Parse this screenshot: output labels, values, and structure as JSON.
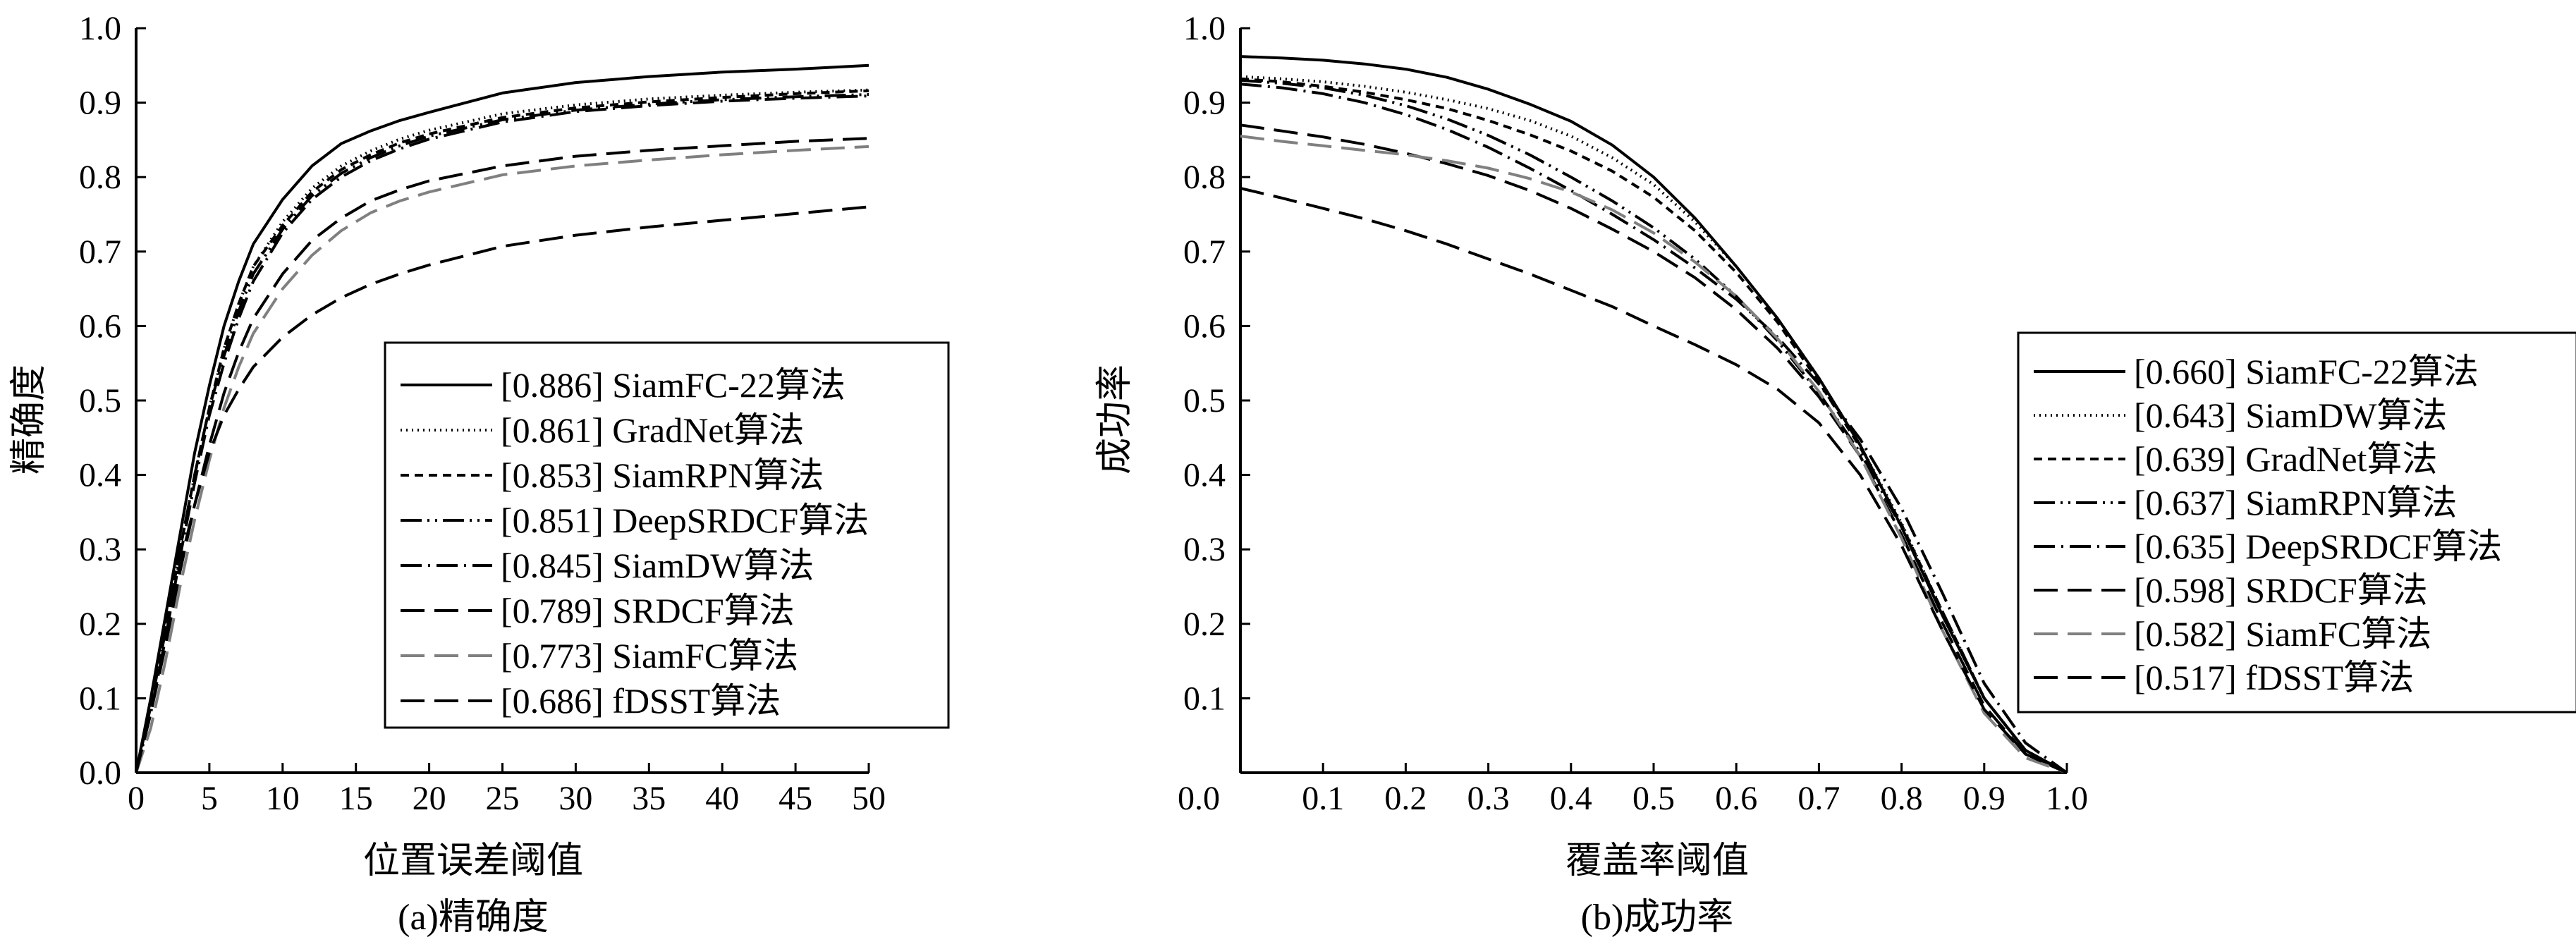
{
  "chart_data": [
    {
      "type": "line",
      "ylabel": "精确度",
      "xlabel": "位置误差阈值",
      "caption": "(a)精确度",
      "xlim": [
        0,
        50
      ],
      "ylim": [
        0.0,
        1.0
      ],
      "xticks": [
        0,
        5,
        10,
        15,
        20,
        25,
        30,
        35,
        40,
        45,
        50
      ],
      "yticks": [
        0.0,
        0.1,
        0.2,
        0.3,
        0.4,
        0.5,
        0.6,
        0.7,
        0.8,
        0.9,
        1.0
      ],
      "xtick_labels": [
        "0",
        "5",
        "10",
        "15",
        "20",
        "25",
        "30",
        "35",
        "40",
        "45",
        "50"
      ],
      "ytick_labels": [
        "0.0",
        "0.1",
        "0.2",
        "0.3",
        "0.4",
        "0.5",
        "0.6",
        "0.7",
        "0.8",
        "0.9",
        "1.0"
      ],
      "grid": false,
      "legend_position": "lower-right",
      "series": [
        {
          "name": "[0.886] SiamFC-22算法",
          "style": "solid",
          "color": "#000000",
          "x": [
            0,
            1,
            2,
            3,
            4,
            5,
            6,
            7,
            8,
            10,
            12,
            14,
            16,
            18,
            20,
            25,
            30,
            35,
            40,
            45,
            50
          ],
          "y": [
            0.0,
            0.1,
            0.21,
            0.32,
            0.43,
            0.52,
            0.6,
            0.66,
            0.71,
            0.77,
            0.815,
            0.845,
            0.862,
            0.876,
            0.887,
            0.913,
            0.927,
            0.935,
            0.941,
            0.945,
            0.95
          ]
        },
        {
          "name": "[0.861] GradNet算法",
          "style": "dotted",
          "color": "#000000",
          "x": [
            0,
            1,
            2,
            3,
            4,
            5,
            6,
            7,
            8,
            10,
            12,
            14,
            16,
            18,
            20,
            25,
            30,
            35,
            40,
            45,
            50
          ],
          "y": [
            0.0,
            0.09,
            0.19,
            0.3,
            0.4,
            0.49,
            0.57,
            0.63,
            0.68,
            0.74,
            0.785,
            0.815,
            0.835,
            0.851,
            0.863,
            0.885,
            0.897,
            0.905,
            0.91,
            0.914,
            0.917
          ]
        },
        {
          "name": "[0.853] SiamRPN算法",
          "style": "dashed-short",
          "color": "#000000",
          "x": [
            0,
            1,
            2,
            3,
            4,
            5,
            6,
            7,
            8,
            10,
            12,
            14,
            16,
            18,
            20,
            25,
            30,
            35,
            40,
            45,
            50
          ],
          "y": [
            0.0,
            0.09,
            0.19,
            0.3,
            0.4,
            0.49,
            0.57,
            0.63,
            0.68,
            0.735,
            0.78,
            0.81,
            0.83,
            0.846,
            0.858,
            0.88,
            0.893,
            0.901,
            0.907,
            0.912,
            0.916
          ]
        },
        {
          "name": "[0.851] DeepSRDCF算法",
          "style": "dash-dot-dot",
          "color": "#000000",
          "x": [
            0,
            1,
            2,
            3,
            4,
            5,
            6,
            7,
            8,
            10,
            12,
            14,
            16,
            18,
            20,
            25,
            30,
            35,
            40,
            45,
            50
          ],
          "y": [
            0.0,
            0.09,
            0.19,
            0.3,
            0.4,
            0.49,
            0.56,
            0.62,
            0.67,
            0.73,
            0.775,
            0.805,
            0.826,
            0.842,
            0.855,
            0.877,
            0.89,
            0.898,
            0.904,
            0.908,
            0.911
          ]
        },
        {
          "name": "[0.845] SiamDW算法",
          "style": "dash-dot",
          "color": "#000000",
          "x": [
            0,
            1,
            2,
            3,
            4,
            5,
            6,
            7,
            8,
            10,
            12,
            14,
            16,
            18,
            20,
            25,
            30,
            35,
            40,
            45,
            50
          ],
          "y": [
            0.0,
            0.08,
            0.18,
            0.29,
            0.39,
            0.48,
            0.55,
            0.61,
            0.66,
            0.725,
            0.77,
            0.8,
            0.822,
            0.838,
            0.851,
            0.874,
            0.888,
            0.896,
            0.902,
            0.906,
            0.909
          ]
        },
        {
          "name": "[0.789] SRDCF算法",
          "style": "dashed-long",
          "color": "#000000",
          "x": [
            0,
            1,
            2,
            3,
            4,
            5,
            6,
            7,
            8,
            10,
            12,
            14,
            16,
            18,
            20,
            25,
            30,
            35,
            40,
            45,
            50
          ],
          "y": [
            0.0,
            0.08,
            0.17,
            0.27,
            0.36,
            0.44,
            0.51,
            0.565,
            0.61,
            0.67,
            0.715,
            0.745,
            0.768,
            0.783,
            0.795,
            0.815,
            0.828,
            0.836,
            0.842,
            0.848,
            0.852
          ]
        },
        {
          "name": "[0.773] SiamFC算法",
          "style": "dashed-long",
          "color": "#808080",
          "x": [
            0,
            1,
            2,
            3,
            4,
            5,
            6,
            7,
            8,
            10,
            12,
            14,
            16,
            18,
            20,
            25,
            30,
            35,
            40,
            45,
            50
          ],
          "y": [
            0.0,
            0.06,
            0.15,
            0.25,
            0.34,
            0.42,
            0.49,
            0.545,
            0.59,
            0.65,
            0.695,
            0.728,
            0.752,
            0.768,
            0.78,
            0.803,
            0.815,
            0.823,
            0.83,
            0.836,
            0.841
          ]
        },
        {
          "name": "[0.686] fDSST算法",
          "style": "dashed-long",
          "color": "#000000",
          "x": [
            0,
            1,
            2,
            3,
            4,
            5,
            6,
            7,
            8,
            10,
            12,
            14,
            16,
            18,
            20,
            25,
            30,
            35,
            40,
            45,
            50
          ],
          "y": [
            0.0,
            0.08,
            0.18,
            0.28,
            0.36,
            0.43,
            0.48,
            0.515,
            0.545,
            0.585,
            0.615,
            0.638,
            0.656,
            0.67,
            0.682,
            0.707,
            0.722,
            0.733,
            0.742,
            0.751,
            0.76
          ]
        }
      ]
    },
    {
      "type": "line",
      "ylabel": "成功率",
      "xlabel": "覆盖率阈值",
      "caption": "(b)成功率",
      "xlim": [
        0.0,
        1.0
      ],
      "ylim": [
        0.0,
        1.0
      ],
      "xticks": [
        0.0,
        0.1,
        0.2,
        0.3,
        0.4,
        0.5,
        0.6,
        0.7,
        0.8,
        0.9,
        1.0
      ],
      "yticks": [
        0.1,
        0.2,
        0.3,
        0.4,
        0.5,
        0.6,
        0.7,
        0.8,
        0.9,
        1.0
      ],
      "xtick_labels": [
        "0.0",
        "0.1",
        "0.2",
        "0.3",
        "0.4",
        "0.5",
        "0.6",
        "0.7",
        "0.8",
        "0.9",
        "1.0"
      ],
      "ytick_labels": [
        "0.1",
        "0.2",
        "0.3",
        "0.4",
        "0.5",
        "0.6",
        "0.7",
        "0.8",
        "0.9",
        "1.0"
      ],
      "grid": false,
      "legend_position": "right",
      "series": [
        {
          "name": "[0.660] SiamFC-22算法",
          "style": "solid",
          "color": "#000000",
          "x": [
            0.0,
            0.05,
            0.1,
            0.15,
            0.2,
            0.25,
            0.3,
            0.35,
            0.4,
            0.45,
            0.5,
            0.55,
            0.6,
            0.65,
            0.7,
            0.75,
            0.8,
            0.85,
            0.9,
            0.95,
            1.0
          ],
          "y": [
            0.962,
            0.96,
            0.957,
            0.952,
            0.945,
            0.934,
            0.918,
            0.898,
            0.875,
            0.843,
            0.8,
            0.745,
            0.68,
            0.61,
            0.53,
            0.44,
            0.33,
            0.21,
            0.1,
            0.03,
            0.0
          ]
        },
        {
          "name": "[0.643] SiamDW算法",
          "style": "dotted",
          "color": "#000000",
          "x": [
            0.0,
            0.05,
            0.1,
            0.15,
            0.2,
            0.25,
            0.3,
            0.35,
            0.4,
            0.45,
            0.5,
            0.55,
            0.6,
            0.65,
            0.7,
            0.75,
            0.8,
            0.85,
            0.9,
            0.95,
            1.0
          ],
          "y": [
            0.935,
            0.932,
            0.928,
            0.922,
            0.914,
            0.904,
            0.892,
            0.876,
            0.855,
            0.826,
            0.79,
            0.74,
            0.68,
            0.61,
            0.53,
            0.44,
            0.335,
            0.215,
            0.1,
            0.03,
            0.0
          ]
        },
        {
          "name": "[0.639] GradNet算法",
          "style": "dashed-short",
          "color": "#000000",
          "x": [
            0.0,
            0.05,
            0.1,
            0.15,
            0.2,
            0.25,
            0.3,
            0.35,
            0.4,
            0.45,
            0.5,
            0.55,
            0.6,
            0.65,
            0.7,
            0.75,
            0.8,
            0.85,
            0.9,
            0.95,
            1.0
          ],
          "y": [
            0.932,
            0.928,
            0.922,
            0.914,
            0.904,
            0.892,
            0.876,
            0.857,
            0.835,
            0.808,
            0.773,
            0.728,
            0.672,
            0.605,
            0.525,
            0.437,
            0.333,
            0.215,
            0.1,
            0.03,
            0.0
          ]
        },
        {
          "name": "[0.637] SiamRPN算法",
          "style": "dash-dot-dot",
          "color": "#000000",
          "x": [
            0.0,
            0.05,
            0.1,
            0.15,
            0.2,
            0.25,
            0.3,
            0.35,
            0.4,
            0.45,
            0.5,
            0.55,
            0.6,
            0.65,
            0.7,
            0.75,
            0.8,
            0.85,
            0.9,
            0.95,
            1.0
          ],
          "y": [
            0.93,
            0.926,
            0.92,
            0.91,
            0.896,
            0.878,
            0.856,
            0.83,
            0.8,
            0.768,
            0.732,
            0.69,
            0.64,
            0.58,
            0.51,
            0.43,
            0.33,
            0.215,
            0.1,
            0.03,
            0.0
          ]
        },
        {
          "name": "[0.635] DeepSRDCF算法",
          "style": "dash-dot",
          "color": "#000000",
          "x": [
            0.0,
            0.05,
            0.1,
            0.15,
            0.2,
            0.25,
            0.3,
            0.35,
            0.4,
            0.45,
            0.5,
            0.55,
            0.6,
            0.65,
            0.7,
            0.75,
            0.8,
            0.85,
            0.9,
            0.95,
            1.0
          ],
          "y": [
            0.925,
            0.92,
            0.912,
            0.9,
            0.884,
            0.864,
            0.84,
            0.812,
            0.782,
            0.75,
            0.716,
            0.678,
            0.636,
            0.585,
            0.522,
            0.448,
            0.355,
            0.24,
            0.12,
            0.04,
            0.0
          ]
        },
        {
          "name": "[0.598] SRDCF算法",
          "style": "dashed-long",
          "color": "#000000",
          "x": [
            0.0,
            0.05,
            0.1,
            0.15,
            0.2,
            0.25,
            0.3,
            0.35,
            0.4,
            0.45,
            0.5,
            0.55,
            0.6,
            0.65,
            0.7,
            0.75,
            0.8,
            0.85,
            0.9,
            0.95,
            1.0
          ],
          "y": [
            0.87,
            0.862,
            0.854,
            0.844,
            0.832,
            0.818,
            0.802,
            0.782,
            0.758,
            0.73,
            0.7,
            0.665,
            0.622,
            0.57,
            0.505,
            0.425,
            0.32,
            0.2,
            0.09,
            0.025,
            0.0
          ]
        },
        {
          "name": "[0.582] SiamFC算法",
          "style": "dashed-long",
          "color": "#808080",
          "x": [
            0.0,
            0.05,
            0.1,
            0.15,
            0.2,
            0.25,
            0.3,
            0.35,
            0.4,
            0.45,
            0.5,
            0.55,
            0.6,
            0.65,
            0.7,
            0.75,
            0.8,
            0.85,
            0.9,
            0.95,
            1.0
          ],
          "y": [
            0.855,
            0.848,
            0.842,
            0.836,
            0.83,
            0.822,
            0.812,
            0.798,
            0.78,
            0.756,
            0.725,
            0.686,
            0.64,
            0.583,
            0.512,
            0.425,
            0.315,
            0.19,
            0.08,
            0.02,
            0.0
          ]
        },
        {
          "name": "[0.517] fDSST算法",
          "style": "dashed-long",
          "color": "#000000",
          "x": [
            0.0,
            0.05,
            0.1,
            0.15,
            0.2,
            0.25,
            0.3,
            0.35,
            0.4,
            0.45,
            0.5,
            0.55,
            0.6,
            0.65,
            0.7,
            0.75,
            0.8,
            0.85,
            0.9,
            0.95,
            1.0
          ],
          "y": [
            0.785,
            0.772,
            0.758,
            0.744,
            0.728,
            0.71,
            0.69,
            0.67,
            0.648,
            0.626,
            0.6,
            0.575,
            0.548,
            0.515,
            0.47,
            0.4,
            0.305,
            0.19,
            0.085,
            0.025,
            0.0
          ]
        }
      ]
    }
  ]
}
